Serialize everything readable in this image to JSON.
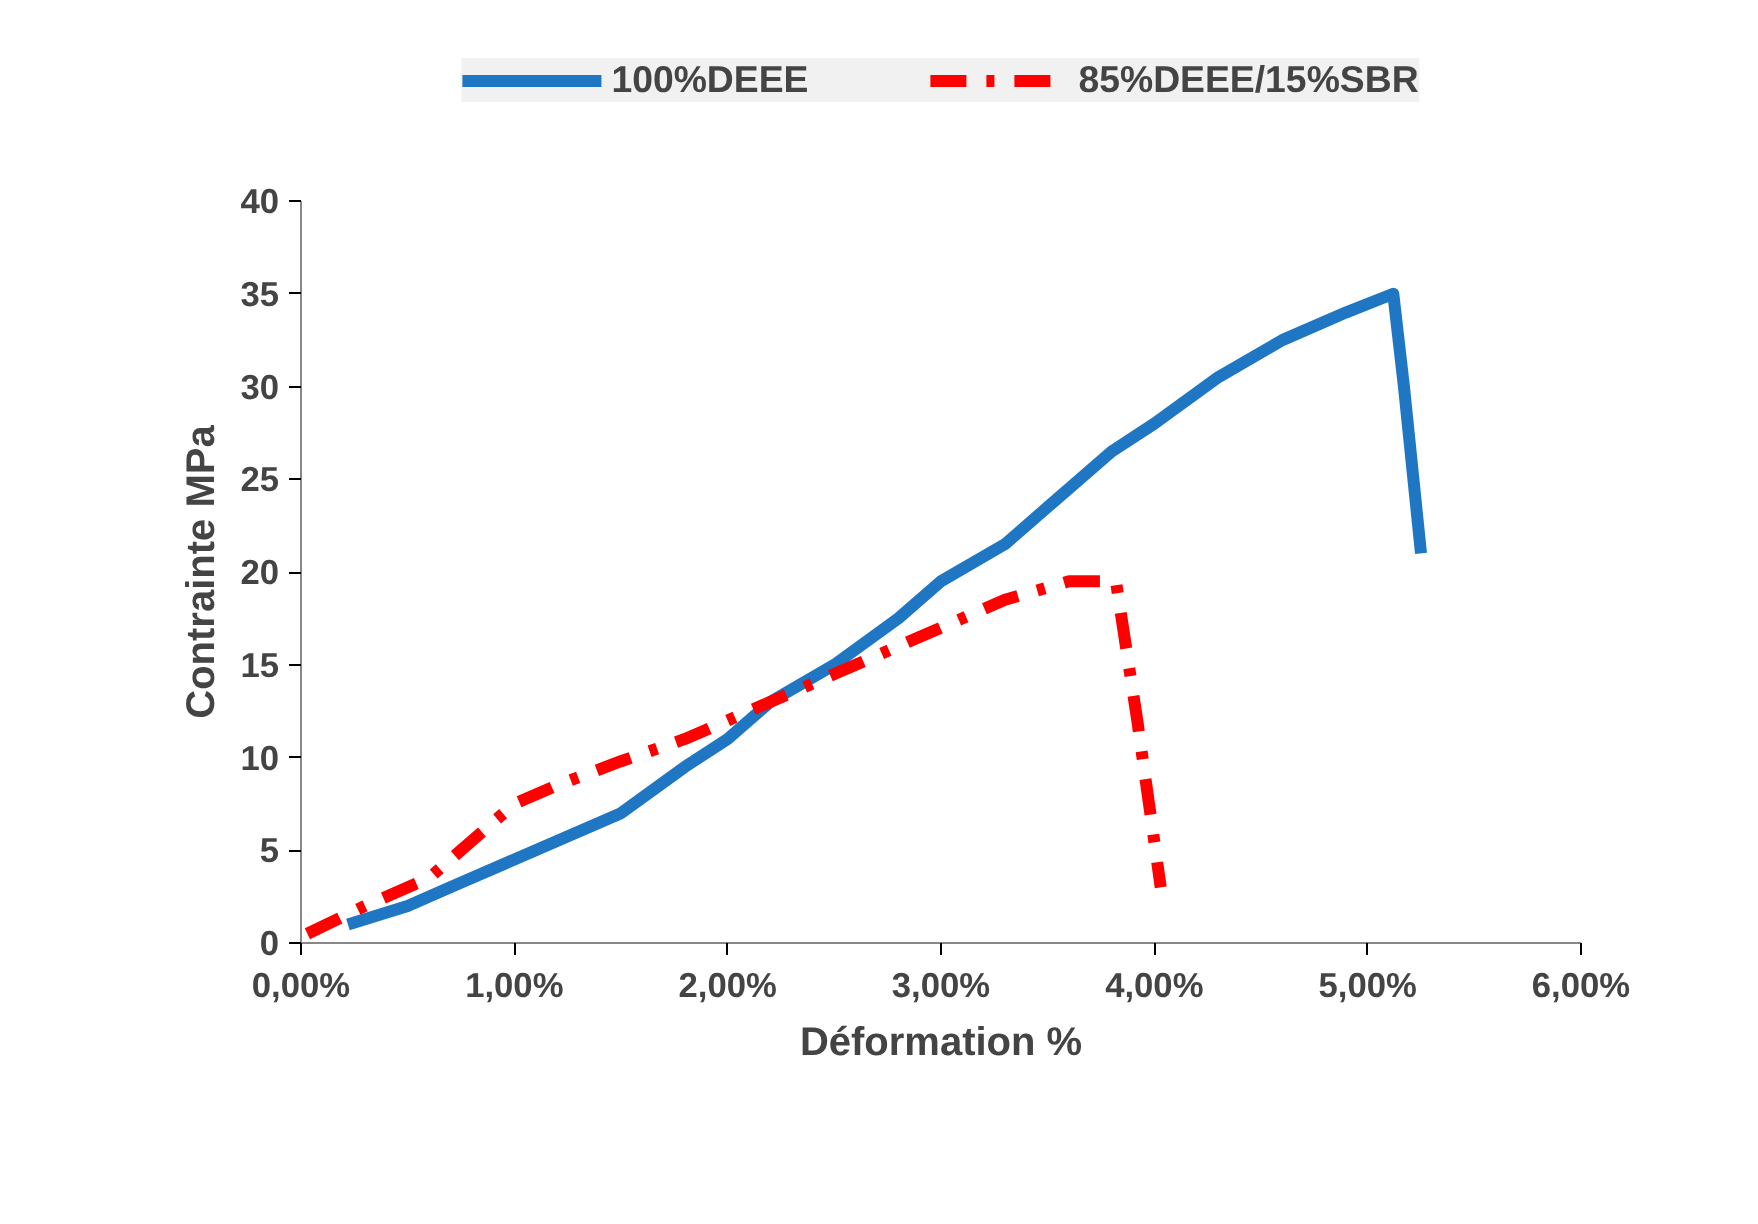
{
  "chart_data": {
    "type": "line",
    "xlabel": "Déformation %",
    "ylabel": "Contrainte MPa",
    "xlim": [
      0,
      6
    ],
    "ylim": [
      0,
      40
    ],
    "xticks": [
      {
        "value": 0,
        "label": "0,00%"
      },
      {
        "value": 1,
        "label": "1,00%"
      },
      {
        "value": 2,
        "label": "2,00%"
      },
      {
        "value": 3,
        "label": "3,00%"
      },
      {
        "value": 4,
        "label": "4,00%"
      },
      {
        "value": 5,
        "label": "5,00%"
      },
      {
        "value": 6,
        "label": "6,00%"
      }
    ],
    "yticks": [
      0,
      5,
      10,
      15,
      20,
      25,
      30,
      35,
      40
    ],
    "grid": false,
    "legend": "top",
    "marker": "none",
    "series": [
      {
        "name": "100%DEEE",
        "color": "#1f77c4",
        "line_style": "solid",
        "x": [
          0.22,
          0.5,
          0.7,
          1.0,
          1.2,
          1.5,
          1.8,
          2.0,
          2.2,
          2.5,
          2.8,
          3.0,
          3.3,
          3.5,
          3.8,
          4.0,
          4.3,
          4.6,
          4.9,
          5.12,
          5.17,
          5.25
        ],
        "values": [
          1,
          2,
          3,
          4.5,
          5.5,
          7,
          9.5,
          11,
          13,
          15,
          17.5,
          19.5,
          21.5,
          23.5,
          26.5,
          28,
          30.5,
          32.5,
          34,
          35,
          30,
          21
        ]
      },
      {
        "name": "85%DEEE/15%SBR",
        "color": "#ff0000",
        "line_style": "dashdot",
        "x": [
          0.03,
          0.3,
          0.6,
          1.0,
          1.2,
          1.5,
          1.8,
          2.0,
          2.5,
          2.8,
          3.0,
          3.3,
          3.6,
          3.82,
          3.92,
          4.03
        ],
        "values": [
          0.5,
          2,
          3.5,
          7.5,
          8.5,
          9.8,
          11,
          12,
          14.5,
          16,
          17,
          18.5,
          19.5,
          19.5,
          12,
          3
        ]
      }
    ]
  }
}
